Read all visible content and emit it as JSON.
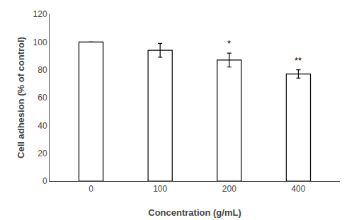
{
  "chart_data": {
    "type": "bar",
    "categories": [
      "0",
      "100",
      "200",
      "400"
    ],
    "values": [
      100,
      94,
      87,
      77
    ],
    "errors": [
      0,
      5,
      5,
      3
    ],
    "color": "#ffffff",
    "xlabel": "Concentration (g/mL)",
    "ylabel": "Cell adhesion (% of control)",
    "ylim": [
      0,
      120
    ],
    "yticks": [
      0,
      20,
      40,
      60,
      80,
      100,
      120
    ],
    "annotations": [
      {
        "x": "200",
        "text": "*"
      },
      {
        "x": "400",
        "text": "**"
      }
    ],
    "grid": false
  }
}
